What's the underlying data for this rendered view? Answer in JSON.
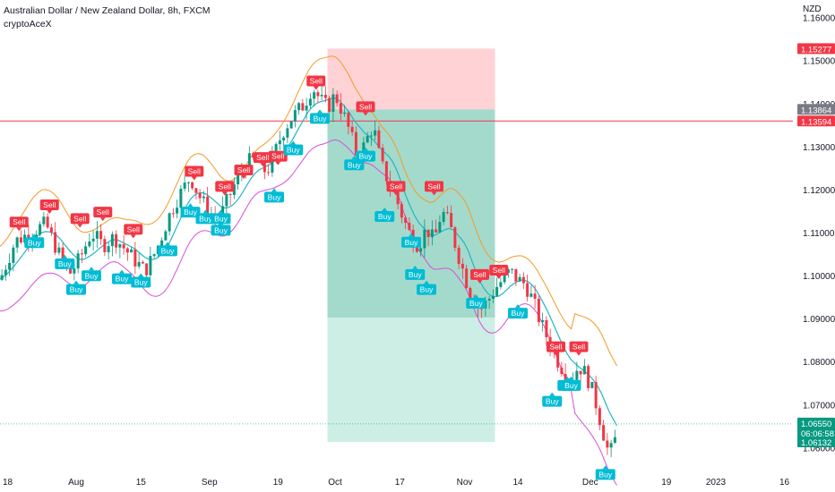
{
  "header": {
    "symbol_title": "Australian Dollar / New Zealand Dollar, 8h, FXCM",
    "author": "cryptoAceX"
  },
  "chart_data": {
    "type": "candlestick",
    "currency_label": "NZD",
    "ylim": [
      1.0505,
      1.1645
    ],
    "y_ticks": [
      "1.16000",
      "1.15000",
      "1.14000",
      "1.13000",
      "1.12000",
      "1.11000",
      "1.10000",
      "1.09000",
      "1.08000",
      "1.07000",
      "1.06000"
    ],
    "x_ticks": [
      {
        "label": "18",
        "t": 2
      },
      {
        "label": "Aug",
        "t": 20
      },
      {
        "label": "15",
        "t": 37
      },
      {
        "label": "Sep",
        "t": 55
      },
      {
        "label": "19",
        "t": 73
      },
      {
        "label": "Oct",
        "t": 88
      },
      {
        "label": "17",
        "t": 105
      },
      {
        "label": "Nov",
        "t": 122
      },
      {
        "label": "14",
        "t": 136
      },
      {
        "label": "Dec",
        "t": 155
      },
      {
        "label": "19",
        "t": 175
      },
      {
        "label": "2023",
        "t": 188
      },
      {
        "label": "16",
        "t": 206
      }
    ],
    "price_path": [
      [
        0,
        1.099
      ],
      [
        4,
        1.108
      ],
      [
        8,
        1.11
      ],
      [
        12,
        1.112
      ],
      [
        15,
        1.106
      ],
      [
        18,
        1.1
      ],
      [
        21,
        1.104
      ],
      [
        24,
        1.11
      ],
      [
        27,
        1.107
      ],
      [
        30,
        1.109
      ],
      [
        33,
        1.106
      ],
      [
        36,
        1.103
      ],
      [
        38,
        1.101
      ],
      [
        40,
        1.104
      ],
      [
        42,
        1.108
      ],
      [
        44,
        1.113
      ],
      [
        46,
        1.117
      ],
      [
        48,
        1.12
      ],
      [
        50,
        1.123
      ],
      [
        52,
        1.119
      ],
      [
        54,
        1.116
      ],
      [
        56,
        1.113
      ],
      [
        58,
        1.114
      ],
      [
        60,
        1.118
      ],
      [
        62,
        1.122
      ],
      [
        64,
        1.125
      ],
      [
        66,
        1.127
      ],
      [
        68,
        1.126
      ],
      [
        70,
        1.124
      ],
      [
        72,
        1.128
      ],
      [
        74,
        1.133
      ],
      [
        76,
        1.136
      ],
      [
        78,
        1.138
      ],
      [
        80,
        1.14
      ],
      [
        82,
        1.144
      ],
      [
        84,
        1.141
      ],
      [
        86,
        1.139
      ],
      [
        88,
        1.142
      ],
      [
        90,
        1.138
      ],
      [
        92,
        1.133
      ],
      [
        94,
        1.127
      ],
      [
        96,
        1.131
      ],
      [
        98,
        1.135
      ],
      [
        100,
        1.126
      ],
      [
        102,
        1.122
      ],
      [
        104,
        1.118
      ],
      [
        106,
        1.113
      ],
      [
        108,
        1.109
      ],
      [
        110,
        1.107
      ],
      [
        112,
        1.111
      ],
      [
        114,
        1.108
      ],
      [
        116,
        1.115
      ],
      [
        118,
        1.112
      ],
      [
        120,
        1.106
      ],
      [
        122,
        1.1
      ],
      [
        124,
        1.095
      ],
      [
        126,
        1.092
      ],
      [
        128,
        1.094
      ],
      [
        130,
        1.097
      ],
      [
        132,
        1.099
      ],
      [
        134,
        1.101
      ],
      [
        136,
        1.099
      ],
      [
        138,
        1.098
      ],
      [
        140,
        1.094
      ],
      [
        142,
        1.089
      ],
      [
        144,
        1.085
      ],
      [
        146,
        1.081
      ],
      [
        148,
        1.078
      ],
      [
        150,
        1.076
      ],
      [
        152,
        1.079
      ],
      [
        154,
        1.077
      ],
      [
        156,
        1.072
      ],
      [
        158,
        1.065
      ],
      [
        160,
        1.058
      ],
      [
        162,
        1.063
      ]
    ],
    "current_price": "1.06550",
    "countdown": "06:06:58",
    "price_tags": [
      {
        "label": "1.15277",
        "value": 1.15277,
        "color": "#f23645"
      },
      {
        "label": "1.13864",
        "value": 1.13864,
        "color": "#787b86"
      },
      {
        "label": "1.13594",
        "value": 1.13594,
        "color": "#f23645"
      },
      {
        "label": "1.06132",
        "value": 1.06132,
        "color": "#089981"
      }
    ],
    "horizontal_line": {
      "value": 1.13594,
      "color": "#f23645"
    },
    "position": {
      "t_start": 86,
      "t_end": 130,
      "entry": 1.13864,
      "stop": 1.15277,
      "target": 1.06132,
      "mid": 1.0902,
      "stop_color": "#ffcdd2",
      "target_color": "#9fd8c9",
      "target_light_color": "#cdeee5"
    },
    "signals": [
      {
        "type": "Sell",
        "t": 5,
        "price": 1.1112
      },
      {
        "type": "Buy",
        "t": 9,
        "price": 1.1089
      },
      {
        "type": "Sell",
        "t": 13,
        "price": 1.1152
      },
      {
        "type": "Buy",
        "t": 17,
        "price": 1.104
      },
      {
        "type": "Sell",
        "t": 21,
        "price": 1.112
      },
      {
        "type": "Buy",
        "t": 20,
        "price": 1.098
      },
      {
        "type": "Buy",
        "t": 24,
        "price": 1.1012
      },
      {
        "type": "Sell",
        "t": 27,
        "price": 1.1135
      },
      {
        "type": "Sell",
        "t": 35,
        "price": 1.1095
      },
      {
        "type": "Buy",
        "t": 32,
        "price": 1.1005
      },
      {
        "type": "Buy",
        "t": 37,
        "price": 1.0997
      },
      {
        "type": "Buy",
        "t": 44,
        "price": 1.107
      },
      {
        "type": "Sell",
        "t": 51,
        "price": 1.123
      },
      {
        "type": "Buy",
        "t": 50,
        "price": 1.116
      },
      {
        "type": "Buy",
        "t": 54,
        "price": 1.1145
      },
      {
        "type": "Sell",
        "t": 59,
        "price": 1.1195
      },
      {
        "type": "Buy",
        "t": 58,
        "price": 1.1145
      },
      {
        "type": "Sell",
        "t": 64,
        "price": 1.1233
      },
      {
        "type": "Buy",
        "t": 58,
        "price": 1.1118
      },
      {
        "type": "Sell",
        "t": 69,
        "price": 1.1262
      },
      {
        "type": "Sell",
        "t": 73,
        "price": 1.1265
      },
      {
        "type": "Buy",
        "t": 72,
        "price": 1.1195
      },
      {
        "type": "Buy",
        "t": 77,
        "price": 1.1305
      },
      {
        "type": "Sell",
        "t": 83,
        "price": 1.144
      },
      {
        "type": "Buy",
        "t": 84,
        "price": 1.1378
      },
      {
        "type": "Buy",
        "t": 93,
        "price": 1.127
      },
      {
        "type": "Sell",
        "t": 96,
        "price": 1.138
      },
      {
        "type": "Buy",
        "t": 96,
        "price": 1.129
      },
      {
        "type": "Sell",
        "t": 104,
        "price": 1.1195
      },
      {
        "type": "Buy",
        "t": 101,
        "price": 1.115
      },
      {
        "type": "Sell",
        "t": 114,
        "price": 1.1195
      },
      {
        "type": "Buy",
        "t": 108,
        "price": 1.109
      },
      {
        "type": "Buy",
        "t": 109,
        "price": 1.1015
      },
      {
        "type": "Buy",
        "t": 112,
        "price": 1.098
      },
      {
        "type": "Sell",
        "t": 126,
        "price": 1.099
      },
      {
        "type": "Buy",
        "t": 125,
        "price": 1.0948
      },
      {
        "type": "Sell",
        "t": 131,
        "price": 1.1
      },
      {
        "type": "Buy",
        "t": 136,
        "price": 1.0925
      },
      {
        "type": "Sell",
        "t": 146,
        "price": 1.0822
      },
      {
        "type": "Sell",
        "t": 152,
        "price": 1.0822
      },
      {
        "type": "Buy",
        "t": 145,
        "price": 1.072
      },
      {
        "type": "Buy",
        "t": 149,
        "price": 1.0757
      },
      {
        "type": "Buy",
        "t": 150,
        "price": 1.0757
      },
      {
        "type": "Buy",
        "t": 159,
        "price": 1.055
      }
    ]
  }
}
